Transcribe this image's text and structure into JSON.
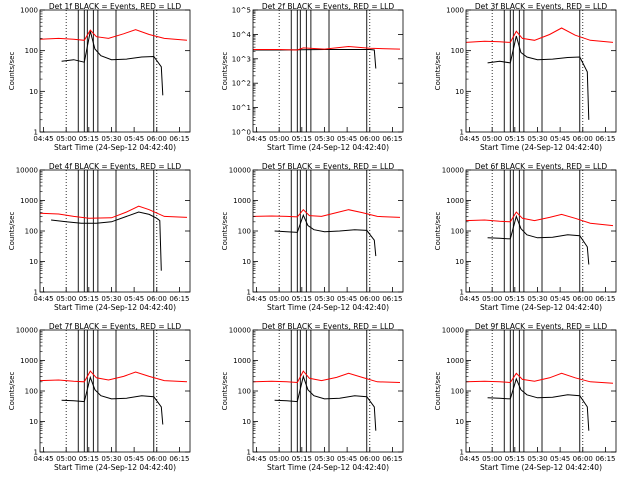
{
  "figure": {
    "xlabel": "Start Time (24-Sep-12 04:42:40)",
    "ylabel": "Counts/sec",
    "x_tick_labels": [
      "04:45",
      "05:00",
      "05:15",
      "05:30",
      "05:45",
      "06:00",
      "06:15"
    ],
    "colors": {
      "events": "#000000",
      "lld": "#ff0000",
      "axes": "#000000",
      "background": "#ffffff"
    }
  },
  "chart_data": [
    {
      "type": "line",
      "title": "Det 1f BLACK = Events, RED = LLD",
      "xlim": [
        "04:42:40",
        "06:22:00"
      ],
      "ylim": [
        1,
        1000
      ],
      "yscale": "log",
      "y_tick_labels": [
        "1",
        "10",
        "100",
        "1000"
      ],
      "dotted_vlines": [
        "05:00",
        "06:00"
      ],
      "solid_vlines": [
        "05:08",
        "05:12",
        "05:14",
        "05:18",
        "05:21",
        "05:33",
        "05:58"
      ],
      "series": [
        {
          "color": "#000000",
          "x": [
            "04:57",
            "05:05",
            "05:12",
            "05:16",
            "05:19",
            "05:23",
            "05:30",
            "05:40",
            "05:50",
            "05:58",
            "06:03",
            "06:04"
          ],
          "y": [
            55,
            60,
            52,
            300,
            110,
            75,
            60,
            62,
            70,
            72,
            40,
            8
          ]
        },
        {
          "color": "#ff0000",
          "x": [
            "04:42:40",
            "04:55",
            "05:05",
            "05:12",
            "05:16",
            "05:20",
            "05:28",
            "05:38",
            "05:46",
            "05:55",
            "06:05",
            "06:20"
          ],
          "y": [
            190,
            200,
            190,
            180,
            320,
            220,
            200,
            260,
            330,
            250,
            200,
            180
          ]
        }
      ]
    },
    {
      "type": "line",
      "title": "Det 2f BLACK = Events, RED = LLD",
      "xlim": [
        "04:42:40",
        "06:22:00"
      ],
      "ylim": [
        1,
        100000
      ],
      "yscale": "log",
      "y_tick_labels": [
        "10^0",
        "10^1",
        "10^2",
        "10^3",
        "10^4",
        "10^5"
      ],
      "dotted_vlines": [
        "05:00",
        "06:00"
      ],
      "solid_vlines": [
        "05:08",
        "05:12",
        "05:14",
        "05:18",
        "05:21",
        "05:33",
        "05:58"
      ],
      "series": [
        {
          "color": "#000000",
          "x": [
            "04:42:40",
            "05:00",
            "05:30",
            "06:00",
            "06:03",
            "06:04"
          ],
          "y": [
            2300,
            2300,
            2400,
            2400,
            2300,
            400
          ]
        },
        {
          "color": "#ff0000",
          "x": [
            "04:42:40",
            "05:00",
            "05:12",
            "05:16",
            "05:30",
            "05:46",
            "06:00",
            "06:20"
          ],
          "y": [
            2400,
            2400,
            2300,
            2800,
            2500,
            3200,
            2700,
            2500
          ]
        }
      ]
    },
    {
      "type": "line",
      "title": "Det 3f BLACK = Events, RED = LLD",
      "xlim": [
        "04:42:40",
        "06:22:00"
      ],
      "ylim": [
        1,
        1000
      ],
      "yscale": "log",
      "y_tick_labels": [
        "1",
        "10",
        "100",
        "1000"
      ],
      "dotted_vlines": [
        "05:00",
        "06:00"
      ],
      "solid_vlines": [
        "05:08",
        "05:12",
        "05:14",
        "05:18",
        "05:21",
        "05:33",
        "05:58"
      ],
      "series": [
        {
          "color": "#000000",
          "x": [
            "04:57",
            "05:05",
            "05:12",
            "05:16",
            "05:19",
            "05:23",
            "05:30",
            "05:40",
            "05:50",
            "05:58",
            "06:03",
            "06:04"
          ],
          "y": [
            50,
            55,
            50,
            230,
            90,
            70,
            60,
            62,
            68,
            70,
            30,
            2
          ]
        },
        {
          "color": "#ff0000",
          "x": [
            "04:42:40",
            "04:55",
            "05:05",
            "05:12",
            "05:16",
            "05:20",
            "05:28",
            "05:38",
            "05:46",
            "05:55",
            "06:05",
            "06:20"
          ],
          "y": [
            160,
            170,
            165,
            160,
            300,
            200,
            180,
            250,
            360,
            240,
            180,
            160
          ]
        }
      ]
    },
    {
      "type": "line",
      "title": "Det 4f BLACK = Events, RED = LLD",
      "xlim": [
        "04:42:40",
        "06:22:00"
      ],
      "ylim": [
        1,
        10000
      ],
      "yscale": "log",
      "y_tick_labels": [
        "1",
        "10",
        "100",
        "1000",
        "10000"
      ],
      "dotted_vlines": [
        "05:00",
        "06:00"
      ],
      "solid_vlines": [
        "05:08",
        "05:12",
        "05:14",
        "05:18",
        "05:21",
        "05:33",
        "05:58"
      ],
      "series": [
        {
          "color": "#000000",
          "x": [
            "04:50",
            "05:00",
            "05:10",
            "05:20",
            "05:30",
            "05:40",
            "05:48",
            "05:55",
            "06:00",
            "06:02",
            "06:03"
          ],
          "y": [
            230,
            200,
            180,
            180,
            200,
            300,
            420,
            350,
            260,
            220,
            5
          ]
        },
        {
          "color": "#ff0000",
          "x": [
            "04:42:40",
            "04:55",
            "05:05",
            "05:15",
            "05:30",
            "05:40",
            "05:48",
            "05:55",
            "06:05",
            "06:20"
          ],
          "y": [
            380,
            360,
            300,
            260,
            270,
            420,
            650,
            500,
            300,
            280
          ]
        }
      ]
    },
    {
      "type": "line",
      "title": "Det 5f BLACK = Events, RED = LLD",
      "xlim": [
        "04:42:40",
        "06:22:00"
      ],
      "ylim": [
        1,
        10000
      ],
      "yscale": "log",
      "y_tick_labels": [
        "1",
        "10",
        "100",
        "1000",
        "10000"
      ],
      "dotted_vlines": [
        "05:00",
        "06:00"
      ],
      "solid_vlines": [
        "05:08",
        "05:12",
        "05:14",
        "05:18",
        "05:21",
        "05:33",
        "05:58"
      ],
      "series": [
        {
          "color": "#000000",
          "x": [
            "04:57",
            "05:05",
            "05:12",
            "05:16",
            "05:19",
            "05:23",
            "05:30",
            "05:40",
            "05:50",
            "05:58",
            "06:03",
            "06:04"
          ],
          "y": [
            100,
            95,
            90,
            330,
            150,
            110,
            95,
            100,
            110,
            105,
            50,
            15
          ]
        },
        {
          "color": "#ff0000",
          "x": [
            "04:42:40",
            "04:55",
            "05:05",
            "05:12",
            "05:16",
            "05:20",
            "05:28",
            "05:38",
            "05:46",
            "05:55",
            "06:05",
            "06:20"
          ],
          "y": [
            300,
            310,
            300,
            290,
            500,
            320,
            300,
            400,
            500,
            400,
            300,
            280
          ]
        }
      ]
    },
    {
      "type": "line",
      "title": "Det 6f BLACK = Events, RED = LLD",
      "xlim": [
        "04:42:40",
        "06:22:00"
      ],
      "ylim": [
        1,
        10000
      ],
      "yscale": "log",
      "y_tick_labels": [
        "1",
        "10",
        "100",
        "1000",
        "10000"
      ],
      "dotted_vlines": [
        "05:00",
        "06:00"
      ],
      "solid_vlines": [
        "05:08",
        "05:12",
        "05:14",
        "05:18",
        "05:21",
        "05:33",
        "05:58"
      ],
      "series": [
        {
          "color": "#000000",
          "x": [
            "04:57",
            "05:05",
            "05:12",
            "05:16",
            "05:19",
            "05:23",
            "05:30",
            "05:40",
            "05:50",
            "05:58",
            "06:03",
            "06:04"
          ],
          "y": [
            60,
            58,
            55,
            300,
            120,
            75,
            60,
            62,
            75,
            70,
            30,
            8
          ]
        },
        {
          "color": "#ff0000",
          "x": [
            "04:42:40",
            "04:55",
            "05:05",
            "05:12",
            "05:16",
            "05:20",
            "05:28",
            "05:38",
            "05:46",
            "05:55",
            "06:05",
            "06:20"
          ],
          "y": [
            220,
            230,
            210,
            200,
            420,
            260,
            220,
            280,
            350,
            260,
            180,
            150
          ]
        }
      ]
    },
    {
      "type": "line",
      "title": "Det 7f BLACK = Events, RED = LLD",
      "xlim": [
        "04:42:40",
        "06:22:00"
      ],
      "ylim": [
        1,
        10000
      ],
      "yscale": "log",
      "y_tick_labels": [
        "1",
        "10",
        "100",
        "1000",
        "10000"
      ],
      "dotted_vlines": [
        "05:00",
        "06:00"
      ],
      "solid_vlines": [
        "05:08",
        "05:12",
        "05:14",
        "05:18",
        "05:21",
        "05:33",
        "05:58"
      ],
      "series": [
        {
          "color": "#000000",
          "x": [
            "04:57",
            "05:05",
            "05:12",
            "05:16",
            "05:19",
            "05:23",
            "05:30",
            "05:40",
            "05:50",
            "05:58",
            "06:03",
            "06:04"
          ],
          "y": [
            50,
            48,
            45,
            280,
            110,
            70,
            55,
            58,
            70,
            65,
            30,
            8
          ]
        },
        {
          "color": "#ff0000",
          "x": [
            "04:42:40",
            "04:55",
            "05:05",
            "05:12",
            "05:16",
            "05:20",
            "05:28",
            "05:38",
            "05:46",
            "05:55",
            "06:05",
            "06:20"
          ],
          "y": [
            220,
            230,
            210,
            200,
            450,
            270,
            230,
            300,
            420,
            300,
            220,
            200
          ]
        }
      ]
    },
    {
      "type": "line",
      "title": "Det 8f BLACK = Events, RED = LLD",
      "xlim": [
        "04:42:40",
        "06:22:00"
      ],
      "ylim": [
        1,
        10000
      ],
      "yscale": "log",
      "y_tick_labels": [
        "1",
        "10",
        "100",
        "1000",
        "10000"
      ],
      "dotted_vlines": [
        "05:00",
        "06:00"
      ],
      "solid_vlines": [
        "05:08",
        "05:12",
        "05:14",
        "05:18",
        "05:21",
        "05:33",
        "05:58"
      ],
      "series": [
        {
          "color": "#000000",
          "x": [
            "04:57",
            "05:05",
            "05:12",
            "05:16",
            "05:19",
            "05:23",
            "05:30",
            "05:40",
            "05:50",
            "05:58",
            "06:03",
            "06:04"
          ],
          "y": [
            50,
            48,
            45,
            300,
            110,
            70,
            55,
            58,
            70,
            65,
            30,
            5
          ]
        },
        {
          "color": "#ff0000",
          "x": [
            "04:42:40",
            "04:55",
            "05:05",
            "05:12",
            "05:16",
            "05:20",
            "05:28",
            "05:38",
            "05:46",
            "05:55",
            "06:05",
            "06:20"
          ],
          "y": [
            200,
            210,
            200,
            190,
            450,
            260,
            220,
            280,
            380,
            280,
            200,
            190
          ]
        }
      ]
    },
    {
      "type": "line",
      "title": "Det 9f BLACK = Events, RED = LLD",
      "xlim": [
        "04:42:40",
        "06:22:00"
      ],
      "ylim": [
        1,
        10000
      ],
      "yscale": "log",
      "y_tick_labels": [
        "1",
        "10",
        "100",
        "1000",
        "10000"
      ],
      "dotted_vlines": [
        "05:00",
        "06:00"
      ],
      "solid_vlines": [
        "05:08",
        "05:12",
        "05:14",
        "05:18",
        "05:21",
        "05:33",
        "05:58"
      ],
      "series": [
        {
          "color": "#000000",
          "x": [
            "04:57",
            "05:05",
            "05:12",
            "05:16",
            "05:19",
            "05:23",
            "05:30",
            "05:40",
            "05:50",
            "05:58",
            "06:03",
            "06:04"
          ],
          "y": [
            60,
            58,
            55,
            250,
            110,
            75,
            60,
            62,
            75,
            70,
            30,
            5
          ]
        },
        {
          "color": "#ff0000",
          "x": [
            "04:42:40",
            "04:55",
            "05:05",
            "05:12",
            "05:16",
            "05:20",
            "05:28",
            "05:38",
            "05:46",
            "05:55",
            "06:05",
            "06:20"
          ],
          "y": [
            200,
            210,
            200,
            190,
            380,
            240,
            210,
            270,
            380,
            270,
            200,
            180
          ]
        }
      ]
    }
  ]
}
